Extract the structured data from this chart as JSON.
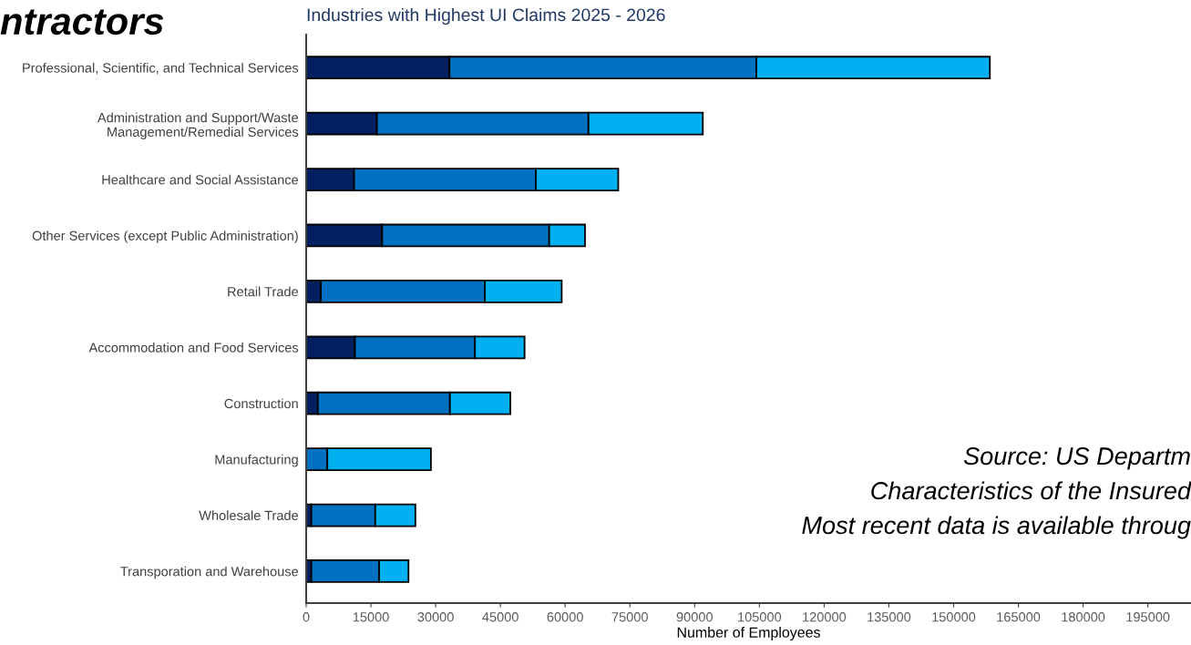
{
  "chart_data": {
    "type": "bar",
    "orientation": "horizontal",
    "stacked": true,
    "title": "Industries with Highest UI Claims 2025 - 2026",
    "xlabel": "Number of Employees",
    "categories": [
      "Professional, Scientific, and Technical Services",
      "Administration and Support/Waste\nManagement/Remedial Services",
      "Healthcare and Social Assistance",
      "Other Services (except Public Administration)",
      "Retail Trade",
      "Accommodation and Food Services",
      "Construction",
      "Manufacturing",
      "Wholesale Trade",
      "Transporation and Warehouse"
    ],
    "series": [
      {
        "color": "#002060",
        "values": [
          33200,
          16400,
          11100,
          17600,
          3400,
          11300,
          2700,
          null,
          1200,
          1200
        ]
      },
      {
        "color": "#0070c0",
        "values": [
          71100,
          49000,
          42100,
          38700,
          38000,
          27800,
          30600,
          4900,
          14800,
          15700
        ]
      },
      {
        "color": "#00b0f0",
        "values": [
          54100,
          26500,
          19100,
          8300,
          17800,
          11500,
          14000,
          24000,
          9300,
          6800
        ]
      }
    ],
    "xlim": [
      0,
      205000
    ],
    "xticks": [
      0,
      15000,
      30000,
      45000,
      60000,
      75000,
      90000,
      105000,
      120000,
      135000,
      150000,
      165000,
      180000,
      195000
    ],
    "grid": false,
    "legend": false,
    "annotations": [
      "ntractors",
      "Source: US Departm",
      "Characteristics of the Insured",
      "Most recent data is available throug"
    ]
  }
}
